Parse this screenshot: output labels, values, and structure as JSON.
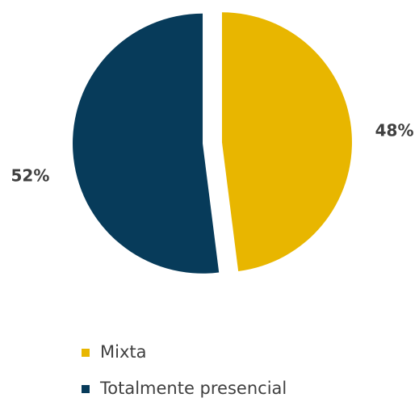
{
  "chart_data": {
    "type": "pie",
    "categories": [
      "Mixta",
      "Totalmente presencial"
    ],
    "values": [
      48,
      52
    ],
    "value_labels": [
      "48%",
      "52%"
    ],
    "colors": [
      "#e8b600",
      "#073b5a"
    ],
    "legend": "bottom"
  }
}
